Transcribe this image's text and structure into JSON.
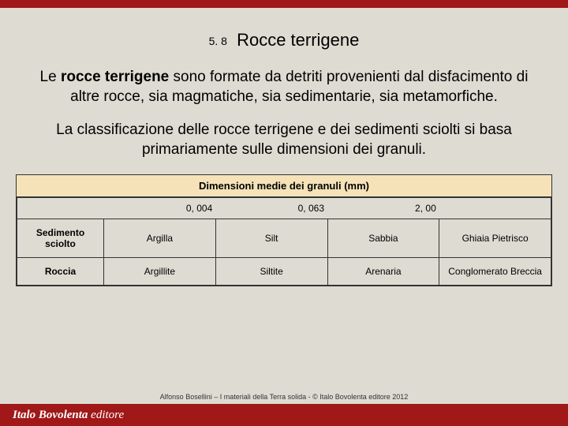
{
  "colors": {
    "accent": "#a01818",
    "background": "#dedbd2",
    "table_header_bg": "#f5e2b8",
    "border": "#333333"
  },
  "header": {
    "section_number": "5. 8",
    "title": "Rocce terrigene"
  },
  "paragraphs": {
    "p1_pre": "Le ",
    "p1_bold": "rocce terrigene",
    "p1_post": " sono formate da detriti provenienti dal disfacimento di altre rocce, sia magmatiche, sia sedimentarie, sia metamorfiche.",
    "p2": "La classificazione delle rocce terrigene e dei sedimenti sciolti si basa primariamente sulle dimensioni dei granuli."
  },
  "table": {
    "header": "Dimensioni medie dei granuli (mm)",
    "scale": [
      "0, 004",
      "0, 063",
      "2, 00"
    ],
    "row_labels": [
      "Sedimento sciolto",
      "Roccia"
    ],
    "rows": [
      [
        "Argilla",
        "Silt",
        "Sabbia",
        "Ghiaia Pietrisco"
      ],
      [
        "Argillite",
        "Siltite",
        "Arenaria",
        "Conglomerato Breccia"
      ]
    ]
  },
  "footer": {
    "credit": "Alfonso Bosellini – I materiali della Terra solida - © Italo Bovolenta editore 2012",
    "logo_main": "Italo Bovolenta",
    "logo_sub": " editore"
  }
}
